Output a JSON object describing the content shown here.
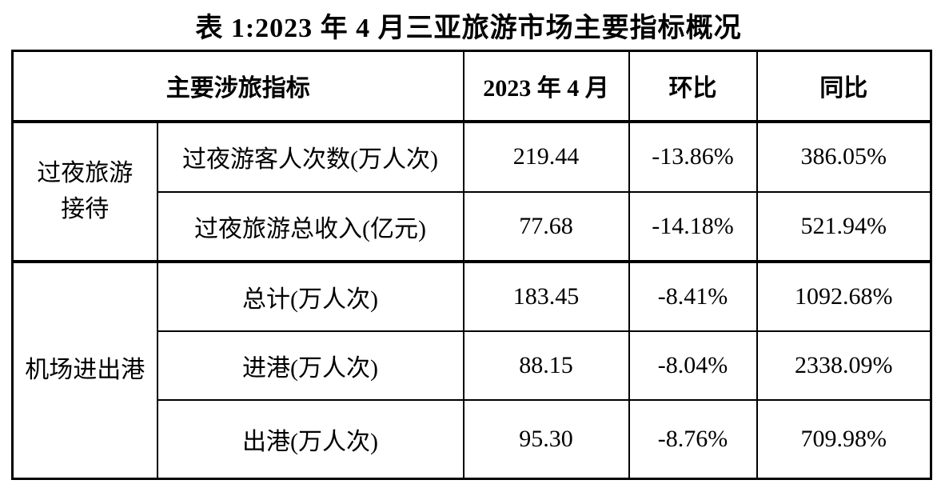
{
  "title": "表 1:2023 年 4 月三亚旅游市场主要指标概况",
  "colors": {
    "background": "#ffffff",
    "border": "#000000",
    "text": "#000000"
  },
  "table": {
    "header": {
      "indicator_label": "主要涉旅指标",
      "period": "2023 年 4 月",
      "mom": "环比",
      "yoy": "同比"
    },
    "groups": [
      {
        "label": "过夜旅游接待",
        "label_lines": [
          "过夜旅游",
          "接待"
        ],
        "rows": [
          {
            "indicator": "过夜游客人次数(万人次)",
            "value": "219.44",
            "mom": "-13.86%",
            "yoy": "386.05%"
          },
          {
            "indicator": "过夜旅游总收入(亿元)",
            "value": "77.68",
            "mom": "-14.18%",
            "yoy": "521.94%"
          }
        ]
      },
      {
        "label": "机场进出港",
        "label_lines": [
          "机场进出港"
        ],
        "rows": [
          {
            "indicator": "总计(万人次)",
            "value": "183.45",
            "mom": "-8.41%",
            "yoy": "1092.68%"
          },
          {
            "indicator": "进港(万人次)",
            "value": "88.15",
            "mom": "-8.04%",
            "yoy": "2338.09%"
          },
          {
            "indicator": "出港(万人次)",
            "value": "95.30",
            "mom": "-8.76%",
            "yoy": "709.98%"
          }
        ]
      }
    ]
  }
}
